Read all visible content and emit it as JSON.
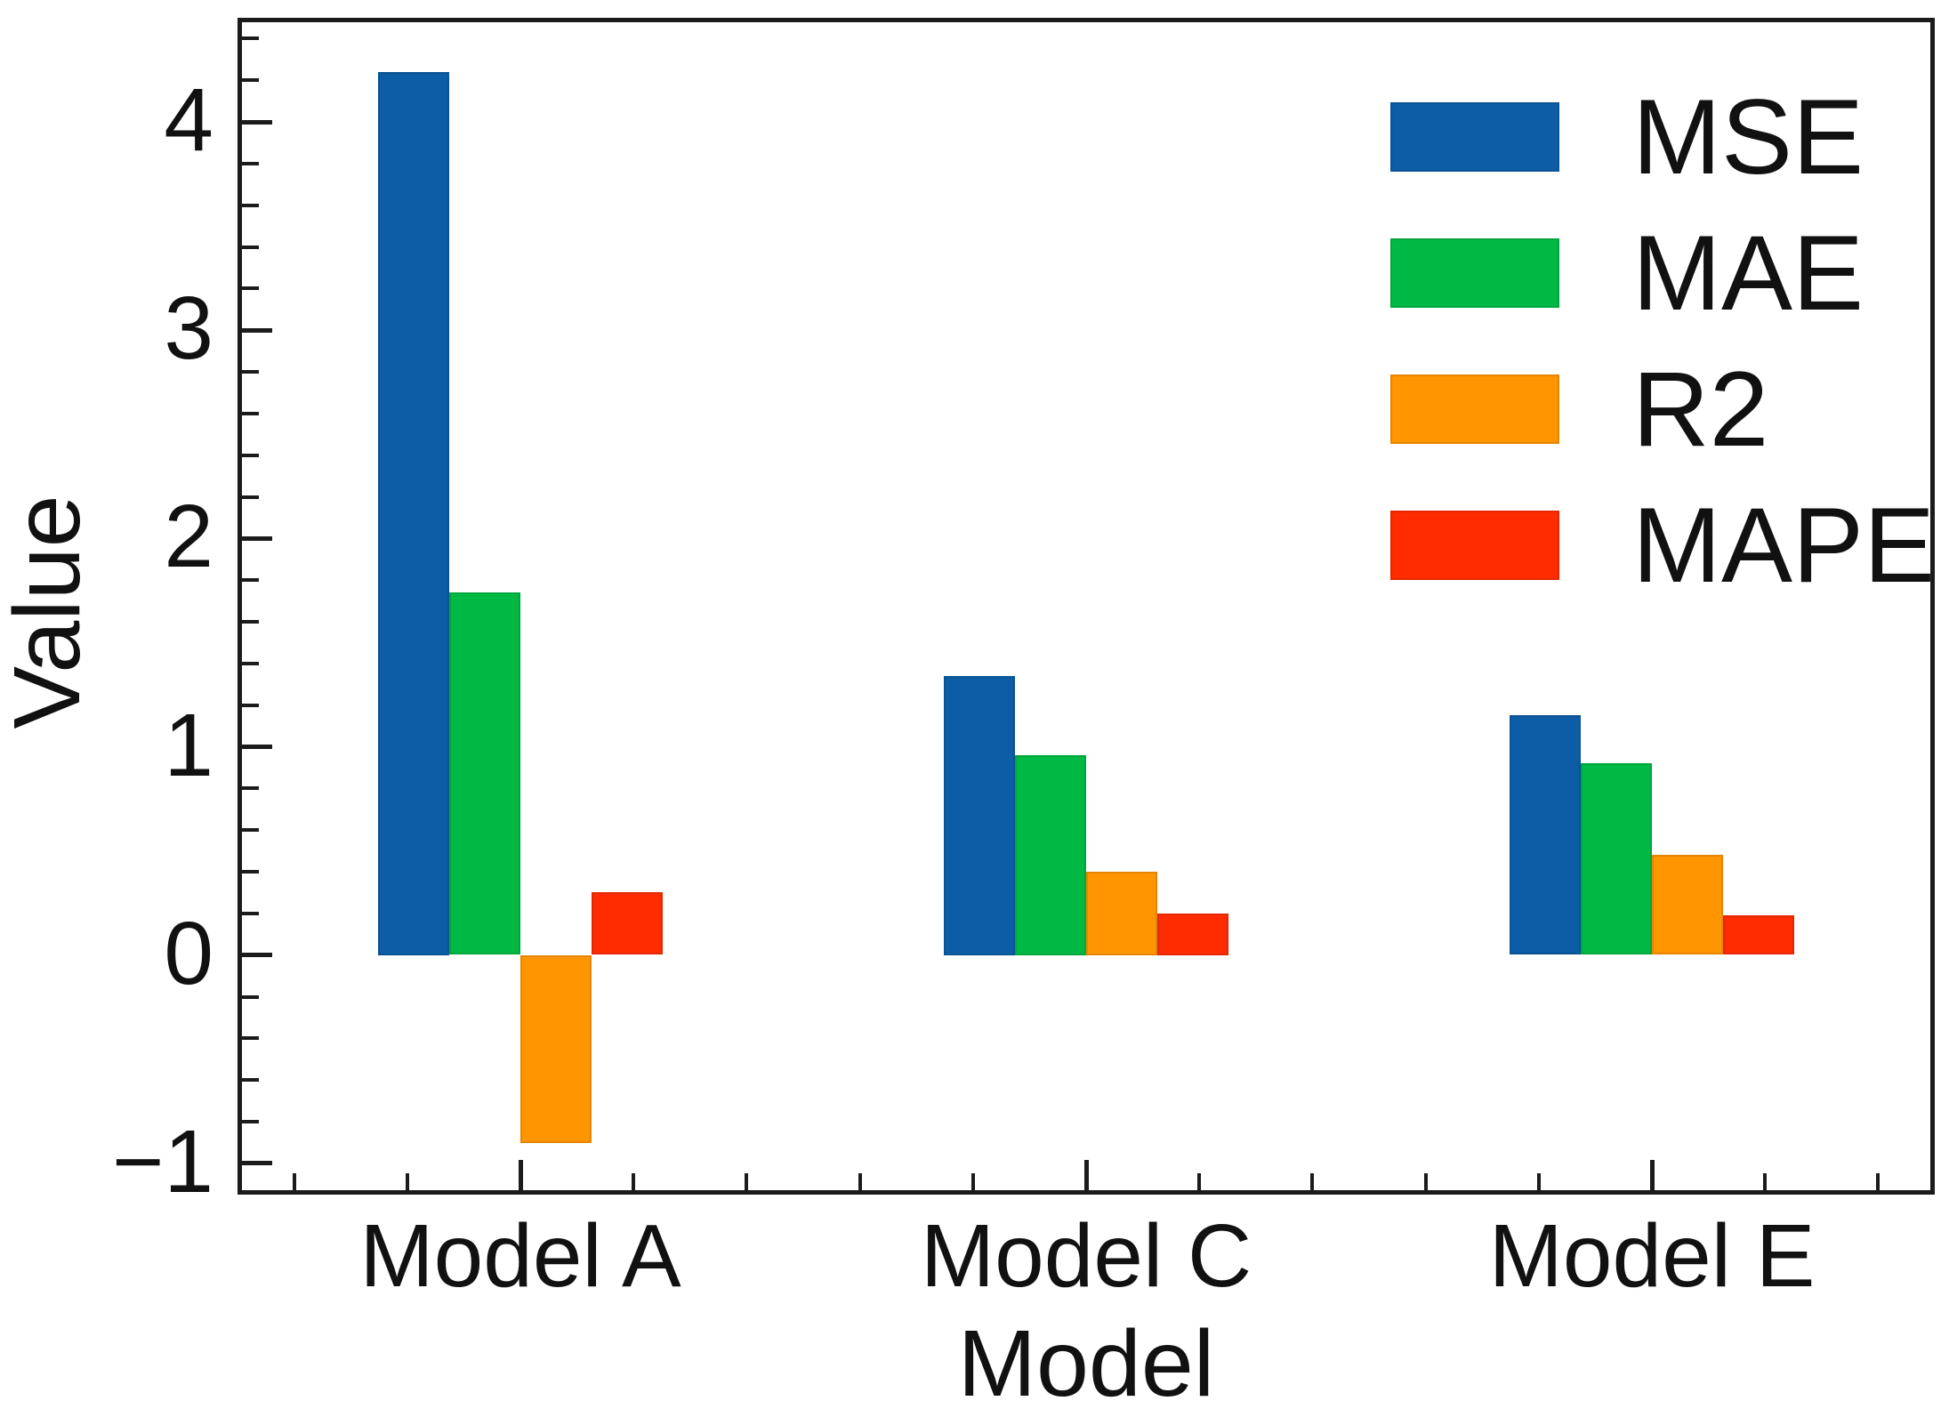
{
  "chart_data": {
    "type": "bar",
    "title": "",
    "xlabel": "Model",
    "ylabel": "Value",
    "categories": [
      "Model A",
      "Model C",
      "Model E"
    ],
    "series": [
      {
        "name": "MSE",
        "color": "#0C5DA5",
        "values": [
          4.24,
          1.34,
          1.15
        ]
      },
      {
        "name": "MAE",
        "color": "#00B945",
        "values": [
          1.74,
          0.96,
          0.92
        ]
      },
      {
        "name": "R2",
        "color": "#FF9500",
        "values": [
          -0.9,
          0.4,
          0.48
        ]
      },
      {
        "name": "MAPE",
        "color": "#FF2C00",
        "values": [
          0.3,
          0.2,
          0.19
        ]
      }
    ],
    "ylim": [
      -1.15,
      4.5
    ],
    "yticks": [
      -1,
      0,
      1,
      2,
      3,
      4
    ],
    "ytick_labels": [
      "−1",
      "0",
      "1",
      "2",
      "3",
      "4"
    ],
    "y_minor_step": 0.2,
    "x_minor_per_major": 5,
    "legend_position": "upper right",
    "grid": false,
    "axis_color": "#1b1b1b",
    "background_color": "#ffffff"
  }
}
